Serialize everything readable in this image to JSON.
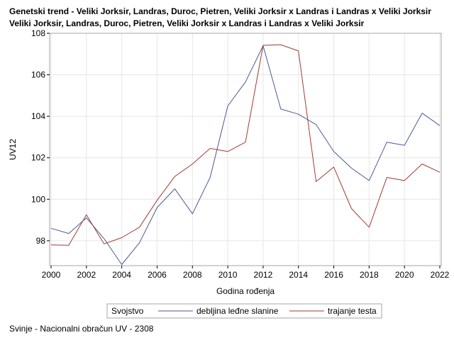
{
  "colors": {
    "series_blue": "#4a5a94",
    "series_red": "#a03a36",
    "grid": "#e6e6e6",
    "frame": "#a6a6a6"
  },
  "chart_data": {
    "type": "line",
    "title_line1": "Genetski trend - Veliki Jorksir, Landras, Duroc, Pietren, Veliki Jorksir x Landras i Landras x Veliki Jorksir",
    "title_line2": "Veliki Jorksir, Landras, Duroc, Pietren, Veliki Jorksir x Landras i Landras x Veliki Jorksir",
    "xlabel": "Godina rođenja",
    "ylabel": "UV12",
    "xlim": [
      2000,
      2022
    ],
    "ylim": [
      96.8,
      108
    ],
    "x_ticks": [
      2000,
      2002,
      2004,
      2006,
      2008,
      2010,
      2012,
      2014,
      2016,
      2018,
      2020,
      2022
    ],
    "y_ticks": [
      98,
      100,
      102,
      104,
      106,
      108
    ],
    "grid": true,
    "legend": {
      "title": "Svojstvo",
      "placement": "bottom-center"
    },
    "footnote": "Svinje - Nacionalni obračun UV - 2308",
    "series": [
      {
        "name": "debljina leđne slanine",
        "color": "#4a5a94",
        "x": [
          2000,
          2001,
          2002,
          2003,
          2004,
          2005,
          2006,
          2007,
          2008,
          2009,
          2010,
          2011,
          2012,
          2013,
          2014,
          2015,
          2016,
          2017,
          2018,
          2019,
          2020,
          2021,
          2022
        ],
        "y": [
          98.6,
          98.35,
          99.1,
          98.1,
          96.85,
          97.9,
          99.6,
          100.5,
          99.3,
          101.05,
          104.5,
          105.65,
          107.4,
          104.35,
          104.1,
          103.6,
          102.3,
          101.5,
          100.9,
          102.75,
          102.6,
          104.15,
          103.55
        ]
      },
      {
        "name": "trajanje testa",
        "color": "#a03a36",
        "x": [
          2000,
          2001,
          2002,
          2003,
          2004,
          2005,
          2006,
          2007,
          2008,
          2009,
          2010,
          2011,
          2012,
          2013,
          2014,
          2015,
          2016,
          2017,
          2018,
          2019,
          2020,
          2021,
          2022
        ],
        "y": [
          97.8,
          97.78,
          99.25,
          97.85,
          98.15,
          98.65,
          99.95,
          101.1,
          101.7,
          102.45,
          102.3,
          102.75,
          107.42,
          107.45,
          107.15,
          100.85,
          101.55,
          99.55,
          98.65,
          101.05,
          100.9,
          101.7,
          101.3
        ]
      }
    ]
  }
}
